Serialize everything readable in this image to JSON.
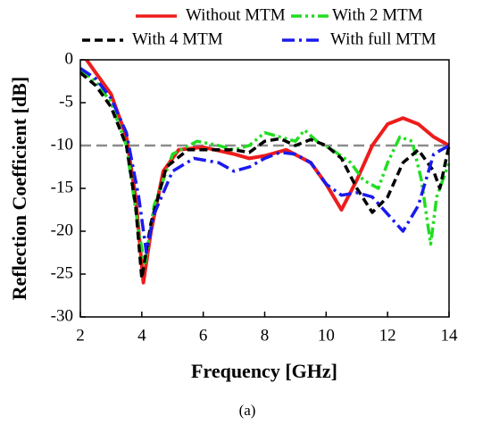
{
  "chart_data": {
    "type": "line",
    "x_label": "Frequency [GHz]",
    "y_label": "Reflection Coefficient [dB]",
    "caption": "(a)",
    "xlim": [
      2,
      14
    ],
    "xticks": [
      2,
      4,
      6,
      8,
      10,
      12,
      14
    ],
    "ylim": [
      -30,
      0
    ],
    "yticks": [
      0,
      -5,
      -10,
      -15,
      -20,
      -25,
      -30
    ],
    "reference_line": {
      "value": -10,
      "color": "#8c8c8c"
    },
    "series": [
      {
        "name": "Without MTM",
        "color": "#ee1c1c",
        "style": "solid",
        "x": [
          2.2,
          2.5,
          3,
          3.5,
          3.8,
          4.05,
          4.3,
          4.7,
          5.2,
          6,
          7,
          7.5,
          8,
          8.7,
          9.5,
          10,
          10.5,
          11,
          11.5,
          12,
          12.5,
          13,
          13.5,
          14
        ],
        "values": [
          0,
          -1.5,
          -4,
          -9,
          -16,
          -26,
          -20,
          -13,
          -10.5,
          -10.2,
          -11,
          -11.5,
          -11.2,
          -10.5,
          -12,
          -14.5,
          -17.5,
          -14,
          -10,
          -7.5,
          -6.8,
          -7.5,
          -9,
          -10
        ]
      },
      {
        "name": "With 2 MTM",
        "color": "#22dd22",
        "style": "dashdotdot",
        "x": [
          2,
          2.5,
          3,
          3.5,
          3.9,
          4.1,
          4.4,
          5,
          5.8,
          6.5,
          7,
          7.5,
          8,
          8.5,
          9,
          9.3,
          9.7,
          10.2,
          10.8,
          11.2,
          11.7,
          12,
          12.4,
          12.8,
          13.1,
          13.4,
          13.6,
          14
        ],
        "values": [
          -1.3,
          -2.5,
          -5,
          -10,
          -20,
          -24,
          -17,
          -11,
          -9.5,
          -10,
          -10.5,
          -10,
          -8.5,
          -9,
          -9.5,
          -8.2,
          -9.5,
          -10.5,
          -12,
          -14,
          -15,
          -12,
          -9,
          -9.5,
          -14,
          -21.5,
          -16,
          -12
        ]
      },
      {
        "name": "With 4 MTM",
        "color": "#000000",
        "style": "dash",
        "x": [
          2,
          2.5,
          3,
          3.5,
          3.8,
          4,
          4.3,
          4.8,
          5.5,
          6.5,
          7,
          7.5,
          8,
          8.5,
          9,
          9.5,
          10,
          10.5,
          11,
          11.5,
          12,
          12.5,
          13,
          13.5,
          13.7,
          14
        ],
        "values": [
          -1.5,
          -3,
          -5.5,
          -10,
          -17,
          -25.5,
          -19,
          -12.5,
          -10.5,
          -10.5,
          -10.5,
          -10.8,
          -9.5,
          -9.2,
          -10,
          -9.3,
          -10,
          -11.5,
          -15,
          -17.8,
          -16,
          -12,
          -10.5,
          -13,
          -15,
          -10
        ]
      },
      {
        "name": "With full MTM",
        "color": "#1a1aee",
        "style": "dashdot",
        "x": [
          2,
          2.5,
          3,
          3.5,
          3.9,
          4.15,
          4.4,
          5,
          5.7,
          6.5,
          7,
          7.5,
          8,
          8.5,
          9,
          9.5,
          10,
          10.5,
          11,
          11.5,
          12,
          12.5,
          13,
          13.5,
          14
        ],
        "values": [
          -1,
          -2.2,
          -4.5,
          -8.5,
          -16,
          -22.5,
          -18,
          -13,
          -11.5,
          -12,
          -13,
          -12.5,
          -11.5,
          -10.8,
          -11,
          -12,
          -14.5,
          -15.8,
          -15.5,
          -16,
          -18,
          -20,
          -17,
          -11,
          -10
        ]
      }
    ]
  }
}
